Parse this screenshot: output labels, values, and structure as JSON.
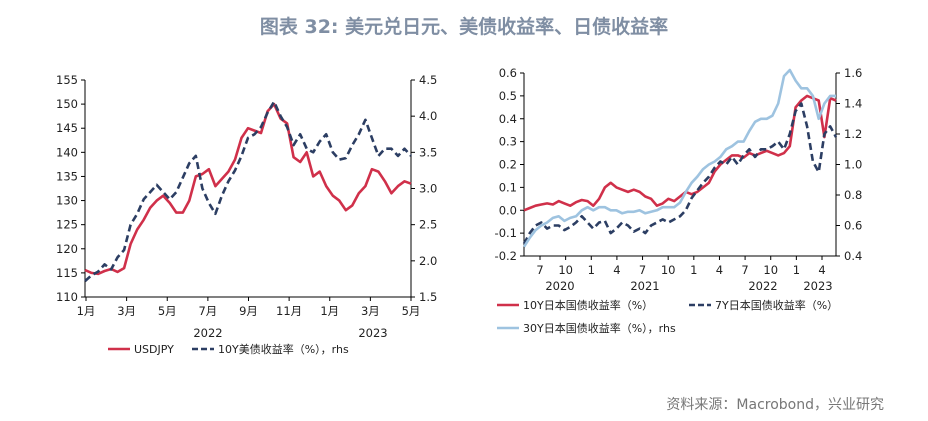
{
  "title": "图表 32: 美元兑日元、美债收益率、日债收益率",
  "source": "资料来源：Macrobond，兴业研究",
  "colors": {
    "red": "#d0304a",
    "navy": "#2c3e63",
    "lightblue": "#9ec3e0"
  },
  "chart_data": [
    {
      "type": "line",
      "x_ticks": [
        "1月",
        "3月",
        "5月",
        "7月",
        "9月",
        "11月",
        "1月",
        "3月",
        "5月"
      ],
      "year_labels": [
        "2022",
        "2023"
      ],
      "ylim_left": [
        110,
        155
      ],
      "ylim_right": [
        1.5,
        4.5
      ],
      "left_ticks": [
        "110",
        "115",
        "120",
        "125",
        "130",
        "135",
        "140",
        "145",
        "150",
        "155"
      ],
      "right_ticks": [
        "1.5",
        "2.0",
        "2.5",
        "3.0",
        "3.5",
        "4.0",
        "4.5"
      ],
      "series": [
        {
          "name": "USDJPY",
          "axis": "left",
          "color": "red",
          "style": "solid",
          "values": [
            115.6,
            115,
            114.8,
            115.4,
            115.8,
            115.2,
            116,
            121,
            124,
            126,
            128.5,
            130,
            131,
            129.5,
            127.5,
            127.5,
            130,
            135,
            135.5,
            136.5,
            133,
            134.5,
            136,
            138.5,
            143,
            145,
            144.5,
            144,
            148.5,
            150,
            147,
            146,
            139,
            138,
            140,
            135,
            136,
            133,
            131,
            130,
            128,
            129,
            131.5,
            133,
            136.5,
            136,
            134,
            131.5,
            133,
            134,
            133.5
          ]
        },
        {
          "name": "10Y美债收益率（%），rhs",
          "axis": "right",
          "color": "navy",
          "style": "dashed",
          "values": [
            1.72,
            1.8,
            1.85,
            1.95,
            1.88,
            2.05,
            2.15,
            2.5,
            2.65,
            2.85,
            2.95,
            3.05,
            2.95,
            2.85,
            2.95,
            3.15,
            3.35,
            3.45,
            3.0,
            2.8,
            2.65,
            2.9,
            3.1,
            3.25,
            3.45,
            3.7,
            3.75,
            3.85,
            4.05,
            4.2,
            4.0,
            3.85,
            3.6,
            3.75,
            3.55,
            3.5,
            3.65,
            3.75,
            3.5,
            3.4,
            3.42,
            3.6,
            3.75,
            3.95,
            3.7,
            3.45,
            3.55,
            3.55,
            3.45,
            3.55,
            3.45
          ]
        }
      ],
      "legend": [
        "USDJPY",
        "10Y美债收益率（%），rhs"
      ]
    },
    {
      "type": "line",
      "x_ticks": [
        "7",
        "10",
        "1",
        "4",
        "7",
        "10",
        "1",
        "4",
        "7",
        "10",
        "1",
        "4"
      ],
      "year_labels": [
        "2020",
        "2021",
        "2022",
        "2023"
      ],
      "ylim_left": [
        -0.2,
        0.6
      ],
      "ylim_right": [
        0.4,
        1.6
      ],
      "left_ticks": [
        "-0.2",
        "-0.1",
        "0.0",
        "0.1",
        "0.2",
        "0.3",
        "0.4",
        "0.5",
        "0.6"
      ],
      "right_ticks": [
        "0.4",
        "0.6",
        "0.8",
        "1.0",
        "1.2",
        "1.4",
        "1.6"
      ],
      "series": [
        {
          "name": "10Y日本国债收益率（%）",
          "axis": "left",
          "color": "red",
          "style": "solid",
          "values": [
            0.0,
            0.01,
            0.02,
            0.025,
            0.03,
            0.025,
            0.04,
            0.03,
            0.02,
            0.035,
            0.045,
            0.04,
            0.02,
            0.05,
            0.1,
            0.12,
            0.1,
            0.09,
            0.08,
            0.09,
            0.08,
            0.06,
            0.05,
            0.02,
            0.03,
            0.05,
            0.04,
            0.06,
            0.08,
            0.07,
            0.08,
            0.1,
            0.12,
            0.17,
            0.2,
            0.22,
            0.24,
            0.24,
            0.23,
            0.25,
            0.24,
            0.25,
            0.26,
            0.25,
            0.24,
            0.25,
            0.28,
            0.45,
            0.48,
            0.5,
            0.49,
            0.48,
            0.32,
            0.49,
            0.48
          ]
        },
        {
          "name": "7Y日本国债收益率（%）",
          "axis": "right",
          "color": "navy",
          "style": "dashed",
          "values": [
            0.48,
            0.55,
            0.6,
            0.62,
            0.58,
            0.6,
            0.6,
            0.57,
            0.59,
            0.62,
            0.66,
            0.62,
            0.58,
            0.62,
            0.63,
            0.55,
            0.58,
            0.62,
            0.6,
            0.56,
            0.58,
            0.55,
            0.6,
            0.62,
            0.64,
            0.62,
            0.64,
            0.66,
            0.7,
            0.78,
            0.83,
            0.88,
            0.92,
            0.98,
            1.02,
            1.0,
            1.05,
            1.0,
            1.06,
            1.1,
            1.05,
            1.1,
            1.1,
            1.12,
            1.15,
            1.1,
            1.2,
            1.35,
            1.4,
            1.25,
            1.02,
            0.95,
            1.2,
            1.25,
            1.18
          ]
        },
        {
          "name": "30Y日本国债收益率（%），rhs",
          "axis": "right",
          "color": "lightblue",
          "style": "solid",
          "values": [
            0.46,
            0.52,
            0.57,
            0.6,
            0.62,
            0.65,
            0.66,
            0.63,
            0.65,
            0.66,
            0.7,
            0.72,
            0.7,
            0.72,
            0.72,
            0.7,
            0.7,
            0.68,
            0.69,
            0.69,
            0.7,
            0.68,
            0.69,
            0.7,
            0.72,
            0.72,
            0.72,
            0.75,
            0.82,
            0.88,
            0.92,
            0.97,
            1.0,
            1.02,
            1.05,
            1.1,
            1.12,
            1.15,
            1.15,
            1.22,
            1.28,
            1.3,
            1.3,
            1.32,
            1.4,
            1.58,
            1.62,
            1.55,
            1.5,
            1.5,
            1.45,
            1.3,
            1.4,
            1.45,
            1.45
          ]
        }
      ],
      "legend": [
        "10Y日本国债收益率（%）",
        "7Y日本国债收益率（%）",
        "30Y日本国债收益率（%），rhs"
      ]
    }
  ]
}
